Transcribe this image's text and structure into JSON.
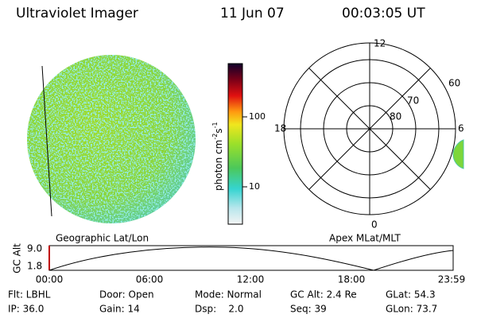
{
  "header": {
    "instrument": "Ultraviolet Imager",
    "date": "11 Jun 07",
    "time": "00:03:05 UT"
  },
  "colorbar": {
    "label": "photon cm",
    "exp1": "-2",
    "label2": "s",
    "exp2": "-1",
    "ticks": [
      "100",
      "10"
    ]
  },
  "polar": {
    "mlt_labels": [
      "12",
      "18",
      "6",
      "0"
    ],
    "lat_labels": [
      "60",
      "70",
      "80"
    ]
  },
  "strip": {
    "ylabel": "GC Alt",
    "yticks": [
      "9.0",
      "1.8"
    ],
    "left_title": "Geographic Lat/Lon",
    "right_title": "Apex MLat/MLT",
    "xticks": [
      "00:00",
      "06:00",
      "12:00",
      "18:00",
      "23:59"
    ]
  },
  "footer": {
    "rows": [
      [
        "Flt: LBHL",
        "Door: Open",
        "Mode: Normal",
        "GC Alt: 2.4 Re",
        "GLat: 54.3"
      ],
      [
        "IP: 36.0",
        "Gain: 14",
        "Dsp:    2.0",
        "Seq: 39",
        "GLon: 73.7"
      ]
    ]
  }
}
